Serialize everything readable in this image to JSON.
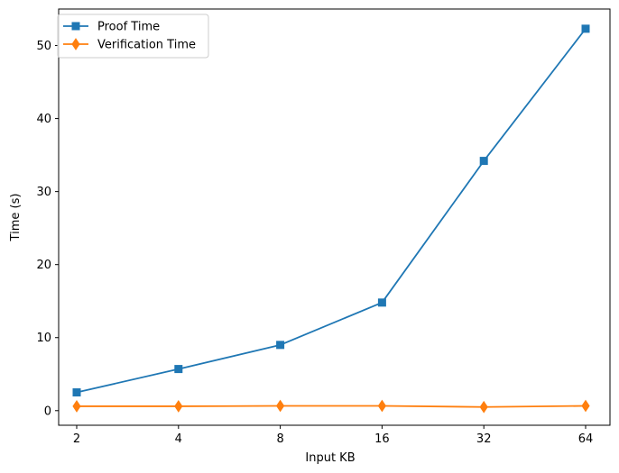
{
  "chart_data": {
    "type": "line",
    "categories": [
      "2",
      "4",
      "8",
      "16",
      "32",
      "64"
    ],
    "xlabel": "Input KB",
    "ylabel": "Time (s)",
    "ylim": [
      -2,
      55
    ],
    "yticks": [
      0,
      10,
      20,
      30,
      40,
      50
    ],
    "grid": false,
    "legend_position": "top-left",
    "series": [
      {
        "name": "Proof Time",
        "color": "#1f77b4",
        "marker": "square",
        "values": [
          2.5,
          5.7,
          9.0,
          14.8,
          34.2,
          52.3
        ]
      },
      {
        "name": "Verification Time",
        "color": "#ff7f0e",
        "marker": "diamond",
        "values": [
          0.6,
          0.6,
          0.65,
          0.65,
          0.5,
          0.65
        ]
      }
    ]
  }
}
